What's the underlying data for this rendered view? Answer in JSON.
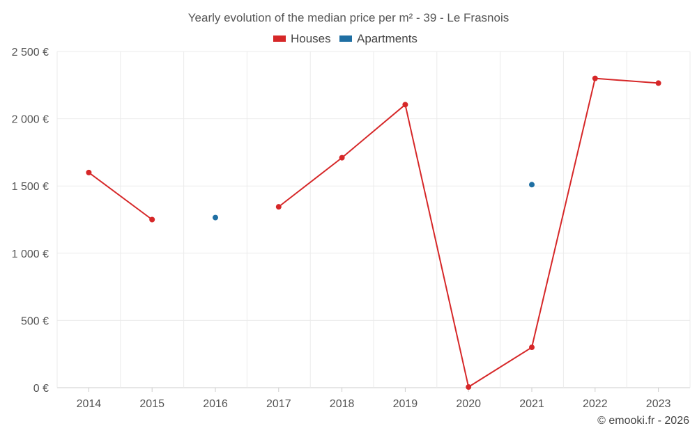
{
  "chart_data": {
    "type": "line",
    "title": "Yearly evolution of the median price per m² - 39 - Le Frasnois",
    "categories": [
      "2014",
      "2015",
      "2016",
      "2017",
      "2018",
      "2019",
      "2020",
      "2021",
      "2022",
      "2023"
    ],
    "series": [
      {
        "name": "Houses",
        "color": "#d62728",
        "values": [
          1600,
          1250,
          null,
          1345,
          1710,
          2105,
          5,
          300,
          2300,
          2265
        ]
      },
      {
        "name": "Apartments",
        "color": "#1f6fa3",
        "values": [
          null,
          null,
          1265,
          null,
          null,
          null,
          null,
          1510,
          null,
          null
        ]
      }
    ],
    "ylim": [
      0,
      2500
    ],
    "yticks": [
      0,
      500,
      1000,
      1500,
      2000,
      2500
    ],
    "ytick_labels": [
      "0 €",
      "500 €",
      "1 000 €",
      "1 500 €",
      "2 000 €",
      "2 500 €"
    ],
    "xlabel": "",
    "ylabel": "",
    "grid": true,
    "legend_position": "top-center"
  },
  "footer": "© emooki.fr - 2026"
}
